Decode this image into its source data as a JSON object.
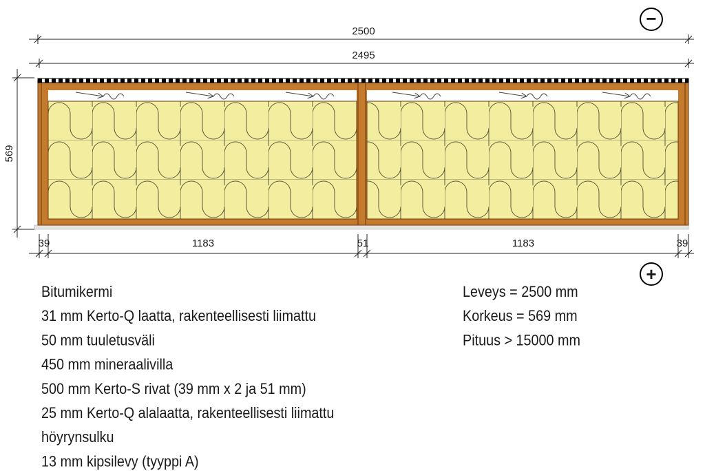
{
  "dimensions": {
    "total_width": "2500",
    "outer_width": "2495",
    "height": "569",
    "bottom": [
      "39",
      "1183",
      "51",
      "1183",
      "39"
    ]
  },
  "signs": {
    "minus": "−",
    "plus": "+"
  },
  "layers": [
    "Bitumikermi",
    "31 mm Kerto-Q laatta, rakenteellisesti liimattu",
    "50 mm tuuletusväli",
    "450 mm mineraalivilla",
    "500 mm Kerto-S rivat (39 mm x 2 ja 51 mm)",
    "25 mm Kerto-Q alalaatta, rakenteellisesti liimattu",
    "höyrynsulku",
    "13 mm kipsilevy (tyyppi A)"
  ],
  "properties": [
    "Leveys = 2500 mm",
    "Korkeus = 569 mm",
    "Pituus > 15000 mm"
  ]
}
